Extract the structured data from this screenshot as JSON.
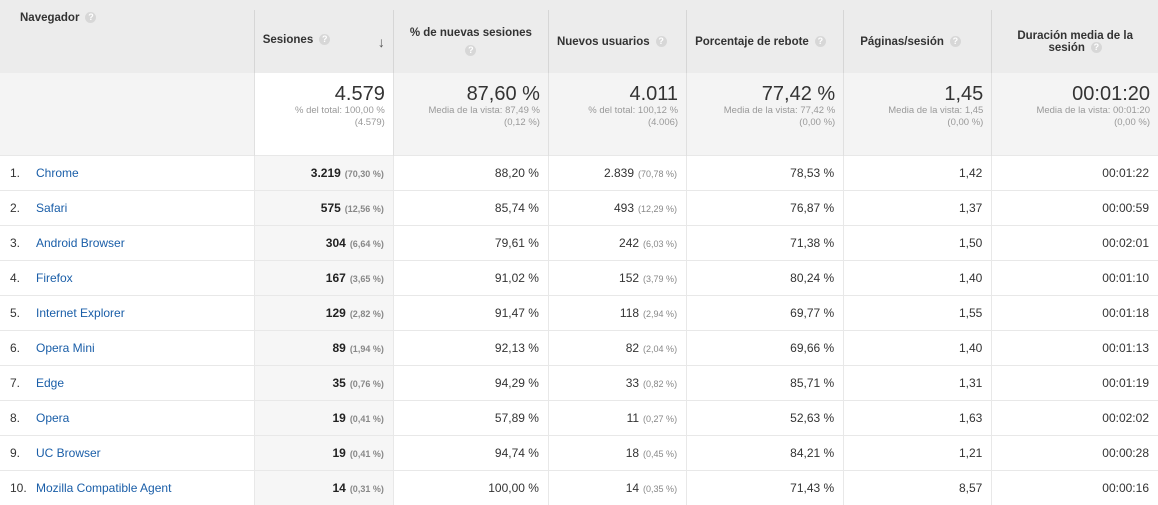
{
  "headers": {
    "browser": "Navegador",
    "sessions": "Sesiones",
    "new_sessions": "% de nuevas sesiones",
    "new_users": "Nuevos usuarios",
    "bounce": "Porcentaje de rebote",
    "pages": "Páginas/sesión",
    "duration": "Duración media de la sesión",
    "help": "?",
    "sort_arrow": "↓"
  },
  "totals": {
    "sessions": {
      "main": "4.579",
      "sub1": "% del total: 100,00 %",
      "sub2": "(4.579)"
    },
    "new_sessions": {
      "main": "87,60 %",
      "sub1": "Media de la vista: 87,49 %",
      "sub2": "(0,12 %)"
    },
    "new_users": {
      "main": "4.011",
      "sub1": "% del total: 100,12 %",
      "sub2": "(4.006)"
    },
    "bounce": {
      "main": "77,42 %",
      "sub1": "Media de la vista: 77,42 %",
      "sub2": "(0,00 %)"
    },
    "pages": {
      "main": "1,45",
      "sub1": "Media de la vista: 1,45",
      "sub2": "(0,00 %)"
    },
    "duration": {
      "main": "00:01:20",
      "sub1": "Media de la vista: 00:01:20",
      "sub2": "(0,00 %)"
    }
  },
  "rows": [
    {
      "idx": "1.",
      "name": "Chrome",
      "sessions": "3.219",
      "sessions_pct": "(70,30 %)",
      "new_sessions": "88,20 %",
      "new_users": "2.839",
      "new_users_pct": "(70,78 %)",
      "bounce": "78,53 %",
      "pages": "1,42",
      "duration": "00:01:22"
    },
    {
      "idx": "2.",
      "name": "Safari",
      "sessions": "575",
      "sessions_pct": "(12,56 %)",
      "new_sessions": "85,74 %",
      "new_users": "493",
      "new_users_pct": "(12,29 %)",
      "bounce": "76,87 %",
      "pages": "1,37",
      "duration": "00:00:59"
    },
    {
      "idx": "3.",
      "name": "Android Browser",
      "sessions": "304",
      "sessions_pct": "(6,64 %)",
      "new_sessions": "79,61 %",
      "new_users": "242",
      "new_users_pct": "(6,03 %)",
      "bounce": "71,38 %",
      "pages": "1,50",
      "duration": "00:02:01"
    },
    {
      "idx": "4.",
      "name": "Firefox",
      "sessions": "167",
      "sessions_pct": "(3,65 %)",
      "new_sessions": "91,02 %",
      "new_users": "152",
      "new_users_pct": "(3,79 %)",
      "bounce": "80,24 %",
      "pages": "1,40",
      "duration": "00:01:10"
    },
    {
      "idx": "5.",
      "name": "Internet Explorer",
      "sessions": "129",
      "sessions_pct": "(2,82 %)",
      "new_sessions": "91,47 %",
      "new_users": "118",
      "new_users_pct": "(2,94 %)",
      "bounce": "69,77 %",
      "pages": "1,55",
      "duration": "00:01:18"
    },
    {
      "idx": "6.",
      "name": "Opera Mini",
      "sessions": "89",
      "sessions_pct": "(1,94 %)",
      "new_sessions": "92,13 %",
      "new_users": "82",
      "new_users_pct": "(2,04 %)",
      "bounce": "69,66 %",
      "pages": "1,40",
      "duration": "00:01:13"
    },
    {
      "idx": "7.",
      "name": "Edge",
      "sessions": "35",
      "sessions_pct": "(0,76 %)",
      "new_sessions": "94,29 %",
      "new_users": "33",
      "new_users_pct": "(0,82 %)",
      "bounce": "85,71 %",
      "pages": "1,31",
      "duration": "00:01:19"
    },
    {
      "idx": "8.",
      "name": "Opera",
      "sessions": "19",
      "sessions_pct": "(0,41 %)",
      "new_sessions": "57,89 %",
      "new_users": "11",
      "new_users_pct": "(0,27 %)",
      "bounce": "52,63 %",
      "pages": "1,63",
      "duration": "00:02:02"
    },
    {
      "idx": "9.",
      "name": "UC Browser",
      "sessions": "19",
      "sessions_pct": "(0,41 %)",
      "new_sessions": "94,74 %",
      "new_users": "18",
      "new_users_pct": "(0,45 %)",
      "bounce": "84,21 %",
      "pages": "1,21",
      "duration": "00:00:28"
    },
    {
      "idx": "10.",
      "name": "Mozilla Compatible Agent",
      "sessions": "14",
      "sessions_pct": "(0,31 %)",
      "new_sessions": "100,00 %",
      "new_users": "14",
      "new_users_pct": "(0,35 %)",
      "bounce": "71,43 %",
      "pages": "8,57",
      "duration": "00:00:16"
    }
  ]
}
